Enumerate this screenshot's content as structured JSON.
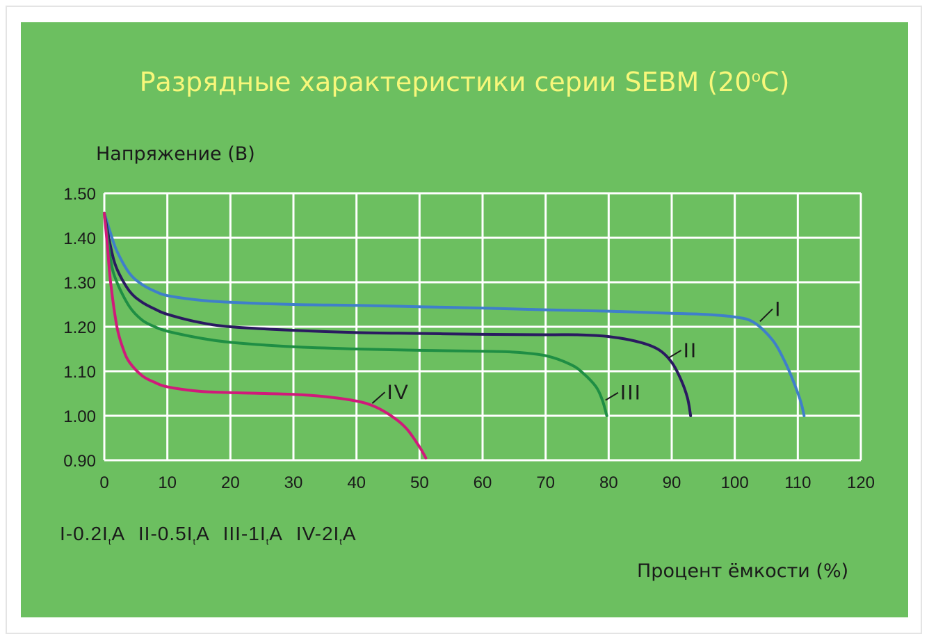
{
  "chart_data": {
    "type": "line",
    "title_main": "Разрядные характеристики серии SEBM (20",
    "title_sup": "o",
    "title_end": "C)",
    "ylabel": "Напряжение (В)",
    "xlabel": "Процент ёмкости (%)",
    "xlim": [
      0,
      120
    ],
    "ylim": [
      0.9,
      1.5
    ],
    "x_ticks": [
      "0",
      "10",
      "20",
      "30",
      "40",
      "50",
      "60",
      "70",
      "80",
      "90",
      "100",
      "110",
      "120"
    ],
    "y_ticks": [
      "1.50",
      "1.40",
      "1.30",
      "1.20",
      "1.10",
      "1.00",
      "0.90"
    ],
    "grid": true,
    "series": [
      {
        "name": "I",
        "color": "#3f7fca",
        "x": [
          0,
          1,
          2,
          4,
          6,
          8,
          10,
          15,
          20,
          30,
          40,
          50,
          60,
          70,
          80,
          90,
          95,
          100,
          103,
          106,
          108,
          109.5,
          110.5,
          111
        ],
        "y": [
          1.455,
          1.41,
          1.37,
          1.32,
          1.295,
          1.28,
          1.27,
          1.26,
          1.255,
          1.25,
          1.248,
          1.245,
          1.242,
          1.238,
          1.235,
          1.23,
          1.228,
          1.222,
          1.21,
          1.17,
          1.12,
          1.07,
          1.03,
          1.0
        ]
      },
      {
        "name": "II",
        "color": "#2a1a60",
        "x": [
          0,
          1,
          2,
          4,
          6,
          8,
          10,
          15,
          20,
          30,
          40,
          50,
          60,
          70,
          75,
          80,
          85,
          88,
          90,
          91.5,
          92.5,
          93
        ],
        "y": [
          1.455,
          1.38,
          1.33,
          1.28,
          1.255,
          1.24,
          1.228,
          1.21,
          1.2,
          1.192,
          1.187,
          1.185,
          1.183,
          1.182,
          1.182,
          1.178,
          1.165,
          1.148,
          1.12,
          1.08,
          1.04,
          1.0
        ]
      },
      {
        "name": "III",
        "color": "#1f8e44",
        "x": [
          0,
          1,
          2,
          4,
          6,
          8,
          10,
          15,
          20,
          30,
          40,
          50,
          60,
          65,
          70,
          74,
          76,
          78,
          79,
          79.7
        ],
        "y": [
          1.455,
          1.35,
          1.3,
          1.245,
          1.215,
          1.2,
          1.19,
          1.175,
          1.165,
          1.155,
          1.15,
          1.147,
          1.145,
          1.143,
          1.135,
          1.115,
          1.095,
          1.065,
          1.035,
          1.0
        ]
      },
      {
        "name": "IV",
        "color": "#d01a7a",
        "x": [
          0,
          0.5,
          1,
          2,
          3,
          4,
          6,
          8,
          10,
          15,
          20,
          30,
          35,
          40,
          43,
          46,
          48,
          50,
          51
        ],
        "y": [
          1.455,
          1.38,
          1.3,
          1.2,
          1.15,
          1.12,
          1.09,
          1.075,
          1.065,
          1.055,
          1.052,
          1.048,
          1.043,
          1.033,
          1.02,
          0.995,
          0.97,
          0.93,
          0.905
        ]
      }
    ],
    "curve_labels": [
      {
        "text": "I",
        "x": 104,
        "y": 1.212,
        "lx": 106,
        "ly": 1.24
      },
      {
        "text": "II",
        "x": 89.5,
        "y": 1.13,
        "lx": 91.5,
        "ly": 1.147
      },
      {
        "text": "III",
        "x": 79.5,
        "y": 1.035,
        "lx": 81.5,
        "ly": 1.052
      },
      {
        "text": "IV",
        "x": 42.5,
        "y": 1.028,
        "lx": 44.5,
        "ly": 1.053
      }
    ],
    "legend_text": {
      "i1": "I-0.2I",
      "i2": "II-0.5I",
      "i3": "III-1I",
      "i4": "IV-2I",
      "sub": "t",
      "unit": "A"
    }
  }
}
